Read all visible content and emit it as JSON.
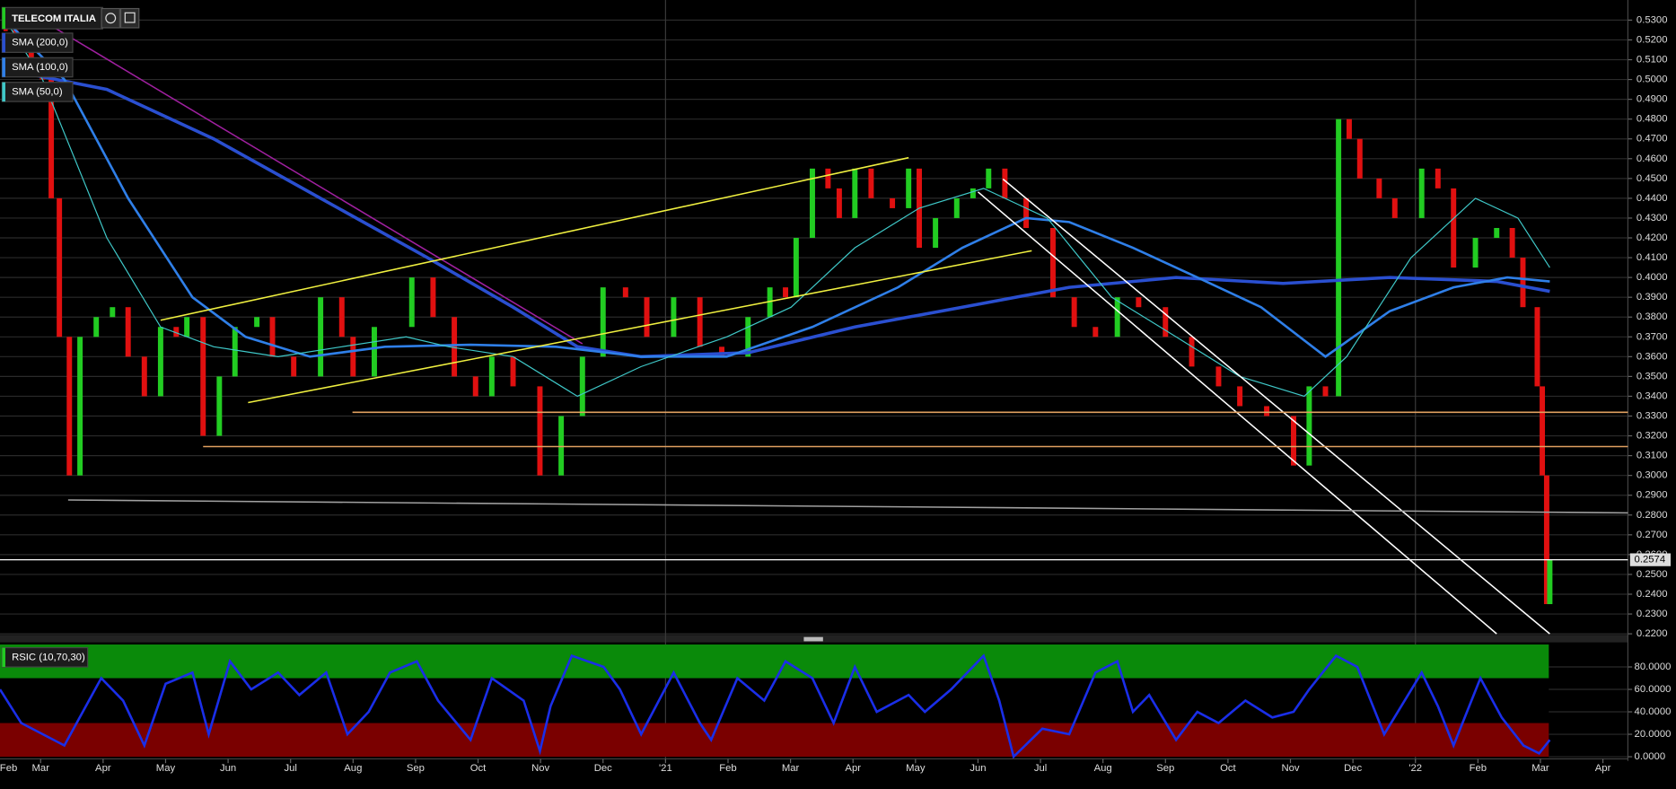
{
  "chart_data": [
    {
      "type": "candlestick",
      "title": "TELECOM ITALIA",
      "up_color": "#22cc22",
      "down_color": "#e01010",
      "x": [
        0.44,
        0.6,
        0.85,
        1.03,
        1.17,
        1.3,
        1.46,
        1.63,
        1.89,
        2.15,
        2.4,
        2.66,
        2.92,
        3.17,
        3.34,
        3.6,
        3.86,
        4.11,
        4.46,
        4.71,
        5.05,
        5.48,
        5.82,
        6.0,
        6.34,
        6.94,
        7.28,
        7.62,
        7.96,
        8.22,
        8.56,
        8.99,
        9.33,
        9.67,
        10.0,
        10.36,
        10.7,
        11.13,
        11.55,
        11.9,
        12.32,
        12.67,
        12.92,
        13.09,
        13.35,
        13.6,
        13.78,
        14.03,
        14.29,
        14.63,
        14.89,
        15.06,
        15.32,
        15.66,
        15.92,
        16.17,
        16.43,
        16.77,
        17.2,
        17.54,
        17.88,
        18.23,
        18.57,
        19.0,
        19.42,
        19.85,
        20.19,
        20.62,
        21.05,
        21.3,
        21.56,
        21.77,
        21.94,
        22.11,
        22.42,
        22.67,
        23.1,
        23.36,
        23.61,
        23.96,
        24.3,
        24.55,
        24.72,
        24.95,
        25.03,
        25.1,
        25.15
      ],
      "values": [
        0.525,
        0.52,
        0.51,
        0.5,
        0.44,
        0.37,
        0.3,
        0.37,
        0.38,
        0.385,
        0.36,
        0.34,
        0.375,
        0.37,
        0.38,
        0.32,
        0.35,
        0.375,
        0.38,
        0.36,
        0.35,
        0.39,
        0.37,
        0.35,
        0.375,
        0.4,
        0.38,
        0.35,
        0.34,
        0.36,
        0.345,
        0.3,
        0.33,
        0.36,
        0.395,
        0.39,
        0.37,
        0.39,
        0.365,
        0.36,
        0.38,
        0.395,
        0.39,
        0.42,
        0.455,
        0.445,
        0.43,
        0.455,
        0.44,
        0.435,
        0.455,
        0.415,
        0.43,
        0.44,
        0.445,
        0.455,
        0.44,
        0.425,
        0.39,
        0.375,
        0.37,
        0.39,
        0.385,
        0.37,
        0.355,
        0.345,
        0.335,
        0.33,
        0.305,
        0.345,
        0.34,
        0.48,
        0.47,
        0.45,
        0.44,
        0.43,
        0.455,
        0.445,
        0.405,
        0.42,
        0.425,
        0.41,
        0.385,
        0.345,
        0.3,
        0.235,
        0.2574
      ],
      "last_price": 0.2574,
      "series": [
        {
          "name": "SMA (200,0)",
          "color": "#2a4fd0",
          "width": 3,
          "x": [
            0.44,
            2.06,
            3.77,
            5.48,
            7.19,
            8.56,
            9.59,
            10.61,
            12.32,
            14.03,
            15.75,
            17.46,
            19.17,
            20.88,
            22.59,
            24.3,
            25.15
          ],
          "values": [
            0.505,
            0.495,
            0.47,
            0.44,
            0.41,
            0.385,
            0.365,
            0.36,
            0.362,
            0.375,
            0.385,
            0.395,
            0.4,
            0.397,
            0.4,
            0.398,
            0.393
          ]
        },
        {
          "name": "SMA (100,0)",
          "color": "#2f7fe8",
          "width": 2.2,
          "x": [
            0.44,
            1.38,
            2.4,
            3.43,
            4.28,
            5.31,
            6.51,
            7.88,
            9.25,
            10.61,
            11.98,
            13.35,
            14.72,
            15.75,
            16.77,
            17.46,
            18.48,
            19.51,
            20.53,
            21.56,
            22.59,
            23.61,
            24.47,
            25.15
          ],
          "values": [
            0.53,
            0.5,
            0.44,
            0.39,
            0.37,
            0.36,
            0.365,
            0.366,
            0.365,
            0.36,
            0.36,
            0.375,
            0.395,
            0.415,
            0.43,
            0.428,
            0.415,
            0.4,
            0.385,
            0.36,
            0.383,
            0.395,
            0.4,
            0.398
          ]
        },
        {
          "name": "SMA (50,0)",
          "color": "#3fc8c8",
          "width": 1,
          "x": [
            0.44,
            1.03,
            2.06,
            2.92,
            3.77,
            4.8,
            5.82,
            6.85,
            7.53,
            8.56,
            9.59,
            10.61,
            11.98,
            13.01,
            14.03,
            15.06,
            16.09,
            17.11,
            18.14,
            19.17,
            20.19,
            21.22,
            21.9,
            22.93,
            23.96,
            24.64,
            25.15
          ],
          "values": [
            0.53,
            0.5,
            0.42,
            0.375,
            0.365,
            0.36,
            0.365,
            0.37,
            0.365,
            0.36,
            0.34,
            0.355,
            0.37,
            0.385,
            0.415,
            0.435,
            0.445,
            0.43,
            0.39,
            0.37,
            0.35,
            0.34,
            0.36,
            0.41,
            0.44,
            0.43,
            0.405
          ]
        }
      ],
      "trendlines": [
        {
          "color": "#a020a0",
          "x": [
            0.69,
            9.67
          ],
          "y": [
            0.5362,
            0.3665
          ]
        },
        {
          "color": "#f0f040",
          "x": [
            2.92,
            14.89
          ],
          "y": [
            0.3784,
            0.4605
          ]
        },
        {
          "color": "#f0f040",
          "x": [
            4.32,
            16.86
          ],
          "y": [
            0.3368,
            0.4135
          ]
        },
        {
          "color": "#ffffff",
          "x": [
            16.4,
            25.15
          ],
          "y": [
            0.4497,
            0.22
          ]
        },
        {
          "color": "#ffffff",
          "x": [
            16.0,
            24.3
          ],
          "y": [
            0.4432,
            0.22
          ]
        },
        {
          "color": "#a0a0a0",
          "x": [
            1.44,
            26.4
          ],
          "y": [
            0.2876,
            0.2811
          ]
        },
        {
          "color": "#e0a060",
          "x": [
            5.99,
            26.4
          ],
          "y": [
            0.3319,
            0.3319
          ]
        },
        {
          "color": "#e0a060",
          "x": [
            3.6,
            26.4
          ],
          "y": [
            0.3146,
            0.3146
          ]
        }
      ],
      "vlines": [
        11,
        23
      ],
      "xlim": [
        0.35,
        26.4
      ],
      "ylim": [
        0.22,
        0.538
      ],
      "grid": true,
      "yticks": [
        {
          "value": 0.22,
          "label": "0.2200"
        },
        {
          "value": 0.23,
          "label": "0.2300"
        },
        {
          "value": 0.24,
          "label": "0.2400"
        },
        {
          "value": 0.25,
          "label": "0.2500"
        },
        {
          "value": 0.26,
          "label": "0.2600"
        },
        {
          "value": 0.27,
          "label": "0.2700"
        },
        {
          "value": 0.28,
          "label": "0.2800"
        },
        {
          "value": 0.29,
          "label": "0.2900"
        },
        {
          "value": 0.3,
          "label": "0.3000"
        },
        {
          "value": 0.31,
          "label": "0.3100"
        },
        {
          "value": 0.32,
          "label": "0.3200"
        },
        {
          "value": 0.33,
          "label": "0.3300"
        },
        {
          "value": 0.34,
          "label": "0.3400"
        },
        {
          "value": 0.35,
          "label": "0.3500"
        },
        {
          "value": 0.36,
          "label": "0.3600"
        },
        {
          "value": 0.37,
          "label": "0.3700"
        },
        {
          "value": 0.38,
          "label": "0.3800"
        },
        {
          "value": 0.39,
          "label": "0.3900"
        },
        {
          "value": 0.4,
          "label": "0.4000"
        },
        {
          "value": 0.41,
          "label": "0.4100"
        },
        {
          "value": 0.42,
          "label": "0.4200"
        },
        {
          "value": 0.43,
          "label": "0.4300"
        },
        {
          "value": 0.44,
          "label": "0.4400"
        },
        {
          "value": 0.45,
          "label": "0.4500"
        },
        {
          "value": 0.46,
          "label": "0.4600"
        },
        {
          "value": 0.47,
          "label": "0.4700"
        },
        {
          "value": 0.48,
          "label": "0.4800"
        },
        {
          "value": 0.49,
          "label": "0.4900"
        },
        {
          "value": 0.5,
          "label": "0.5000"
        },
        {
          "value": 0.51,
          "label": "0.5100"
        },
        {
          "value": 0.52,
          "label": "0.5200"
        },
        {
          "value": 0.53,
          "label": "0.5300"
        }
      ]
    },
    {
      "type": "line",
      "title": "RSIC (10,70,30)",
      "color": "#1a2ee8",
      "upper_band": 70,
      "lower_band": 30,
      "upper_color": "#0a8a0a",
      "lower_color": "#7a0000",
      "x": [
        0.35,
        0.69,
        1.38,
        1.97,
        2.32,
        2.66,
        3.0,
        3.43,
        3.69,
        4.03,
        4.37,
        4.8,
        5.14,
        5.57,
        5.91,
        6.25,
        6.59,
        7.02,
        7.36,
        7.88,
        8.22,
        8.73,
        8.99,
        9.16,
        9.5,
        10.01,
        10.27,
        10.61,
        11.13,
        11.55,
        11.73,
        12.15,
        12.58,
        12.92,
        13.35,
        13.69,
        14.03,
        14.38,
        14.89,
        15.15,
        15.57,
        16.09,
        16.34,
        16.57,
        17.03,
        17.46,
        17.88,
        18.23,
        18.48,
        18.74,
        19.17,
        19.51,
        19.85,
        20.28,
        20.71,
        21.05,
        21.3,
        21.73,
        22.07,
        22.5,
        23.1,
        23.36,
        23.61,
        24.04,
        24.38,
        24.73,
        24.98,
        25.15
      ],
      "values": [
        60,
        30,
        10,
        70,
        50,
        10,
        65,
        75,
        20,
        85,
        60,
        75,
        55,
        75,
        20,
        40,
        75,
        85,
        50,
        15,
        70,
        50,
        5,
        45,
        90,
        80,
        60,
        20,
        75,
        30,
        15,
        70,
        50,
        85,
        70,
        30,
        80,
        40,
        55,
        40,
        60,
        90,
        50,
        0,
        25,
        20,
        75,
        85,
        40,
        55,
        15,
        40,
        30,
        50,
        35,
        40,
        60,
        90,
        80,
        20,
        75,
        45,
        10,
        70,
        35,
        10,
        3,
        15
      ],
      "xlim": [
        0.35,
        26.4
      ],
      "ylim": [
        0,
        100
      ],
      "yticks": [
        {
          "value": 0,
          "label": "0.0000"
        },
        {
          "value": 20,
          "label": "20.0000"
        },
        {
          "value": 40,
          "label": "40.0000"
        },
        {
          "value": 60,
          "label": "60.0000"
        },
        {
          "value": 80,
          "label": "80.0000"
        }
      ],
      "xticks": [
        {
          "value": 0,
          "label": "Feb"
        },
        {
          "value": 1,
          "label": "Mar"
        },
        {
          "value": 2,
          "label": "Apr"
        },
        {
          "value": 3,
          "label": "May"
        },
        {
          "value": 4,
          "label": "Jun"
        },
        {
          "value": 5,
          "label": "Jul"
        },
        {
          "value": 6,
          "label": "Aug"
        },
        {
          "value": 7,
          "label": "Sep"
        },
        {
          "value": 8,
          "label": "Oct"
        },
        {
          "value": 9,
          "label": "Nov"
        },
        {
          "value": 10,
          "label": "Dec"
        },
        {
          "value": 11,
          "label": "'21"
        },
        {
          "value": 12,
          "label": "Feb"
        },
        {
          "value": 13,
          "label": "Mar"
        },
        {
          "value": 14,
          "label": "Apr"
        },
        {
          "value": 15,
          "label": "May"
        },
        {
          "value": 16,
          "label": "Jun"
        },
        {
          "value": 17,
          "label": "Jul"
        },
        {
          "value": 18,
          "label": "Aug"
        },
        {
          "value": 19,
          "label": "Sep"
        },
        {
          "value": 20,
          "label": "Oct"
        },
        {
          "value": 21,
          "label": "Nov"
        },
        {
          "value": 22,
          "label": "Dec"
        },
        {
          "value": 23,
          "label": "'22"
        },
        {
          "value": 24,
          "label": "Feb"
        },
        {
          "value": 25,
          "label": "Mar"
        },
        {
          "value": 26,
          "label": "Apr"
        }
      ]
    }
  ]
}
